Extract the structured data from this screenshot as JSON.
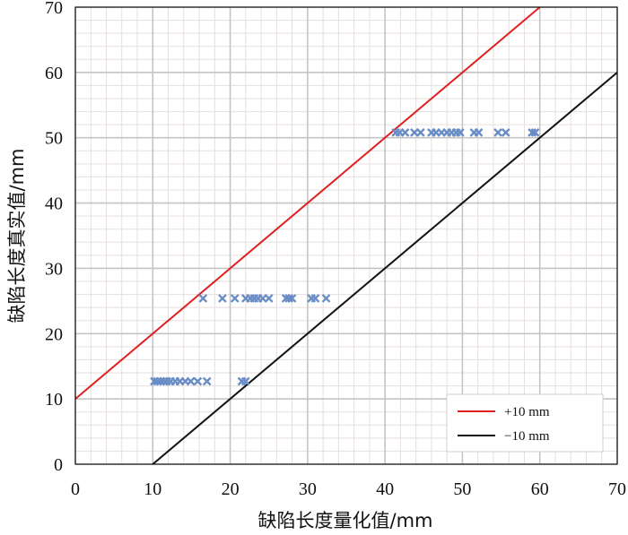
{
  "chart_data": {
    "type": "scatter",
    "title": "",
    "xlabel": "缺陷长度量化值/mm",
    "ylabel": "缺陷长度真实值/mm",
    "xlim": [
      0,
      70
    ],
    "ylim": [
      0,
      70
    ],
    "xticks": [
      "0",
      "10",
      "20",
      "30",
      "40",
      "50",
      "60",
      "70"
    ],
    "yticks": [
      "0",
      "10",
      "20",
      "30",
      "40",
      "50",
      "60",
      "70"
    ],
    "grid": true,
    "legend_position": "bottom-right",
    "series": [
      {
        "type": "scatter",
        "color": "#6a8dc6",
        "marker": "x",
        "points": [
          [
            10.2,
            12.7
          ],
          [
            10.6,
            12.7
          ],
          [
            11.0,
            12.7
          ],
          [
            11.4,
            12.7
          ],
          [
            11.8,
            12.7
          ],
          [
            12.3,
            12.7
          ],
          [
            12.9,
            12.7
          ],
          [
            13.5,
            12.7
          ],
          [
            14.2,
            12.7
          ],
          [
            14.9,
            12.7
          ],
          [
            15.8,
            12.7
          ],
          [
            17.0,
            12.7
          ],
          [
            21.5,
            12.7
          ],
          [
            22.0,
            12.7
          ],
          [
            16.5,
            25.4
          ],
          [
            19.0,
            25.4
          ],
          [
            20.6,
            25.4
          ],
          [
            22.0,
            25.4
          ],
          [
            22.6,
            25.4
          ],
          [
            23.1,
            25.4
          ],
          [
            23.6,
            25.4
          ],
          [
            24.2,
            25.4
          ],
          [
            25.0,
            25.4
          ],
          [
            27.2,
            25.4
          ],
          [
            27.6,
            25.4
          ],
          [
            28.0,
            25.4
          ],
          [
            30.5,
            25.4
          ],
          [
            31.0,
            25.4
          ],
          [
            32.4,
            25.4
          ],
          [
            41.4,
            50.8
          ],
          [
            41.9,
            50.8
          ],
          [
            42.6,
            50.8
          ],
          [
            43.8,
            50.8
          ],
          [
            44.6,
            50.8
          ],
          [
            46.0,
            50.8
          ],
          [
            46.6,
            50.8
          ],
          [
            47.3,
            50.8
          ],
          [
            48.0,
            50.8
          ],
          [
            48.6,
            50.8
          ],
          [
            49.2,
            50.8
          ],
          [
            49.7,
            50.8
          ],
          [
            51.5,
            50.8
          ],
          [
            52.1,
            50.8
          ],
          [
            54.6,
            50.8
          ],
          [
            55.6,
            50.8
          ],
          [
            59.0,
            50.8
          ],
          [
            59.4,
            50.8
          ]
        ]
      },
      {
        "type": "line",
        "name": "+10 mm",
        "color": "#e02020",
        "x": [
          0,
          60
        ],
        "y": [
          10,
          70
        ]
      },
      {
        "type": "line",
        "name": "−10 mm",
        "color": "#111111",
        "x": [
          10,
          70
        ],
        "y": [
          0,
          60
        ]
      }
    ]
  }
}
